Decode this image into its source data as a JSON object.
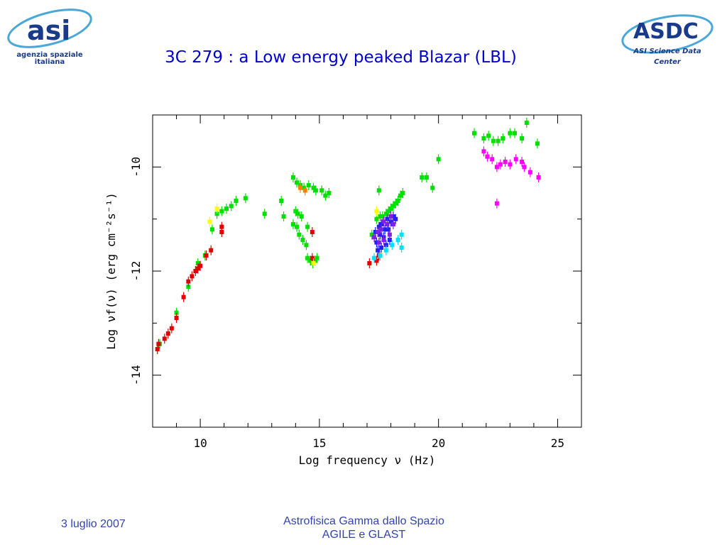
{
  "header": {
    "title": "3C 279 : a Low energy peaked Blazar (LBL)",
    "asi_logo": {
      "line1": "agenzia spaziale",
      "line2": "italiana"
    },
    "asdc_logo": {
      "acronym": "ASDC",
      "line1": "ASI Science Data",
      "line2": "Center"
    }
  },
  "footer": {
    "date": "3 luglio 2007",
    "line1": "Astrofisica Gamma dallo Spazio",
    "line2": "AGILE e GLAST"
  },
  "colors": {
    "title": "#0000cc",
    "footer": "#3344aa",
    "green": "#00e000",
    "red": "#e00000",
    "magenta": "#ff00ff",
    "yellow": "#ffff00",
    "orange": "#ff8000",
    "blue": "#2020ff",
    "purple": "#8020e0",
    "cyan": "#00e0ff"
  },
  "chart_data": {
    "type": "scatter",
    "xlabel": "Log frequency ν (Hz)",
    "ylabel": "Log νf(ν) (erg cm⁻²s⁻¹)",
    "xlim": [
      8,
      26
    ],
    "ylim": [
      -15,
      -9
    ],
    "xticks": [
      10,
      15,
      20,
      25
    ],
    "yticks": [
      -14,
      -12,
      -10
    ],
    "grid": false,
    "series": [
      {
        "color": "green",
        "points": [
          [
            8.3,
            -13.4
          ],
          [
            9,
            -12.8
          ],
          [
            9.5,
            -12.3
          ],
          [
            9.9,
            -11.85
          ],
          [
            10.2,
            -11.7
          ],
          [
            10.5,
            -11.2
          ],
          [
            10.7,
            -10.9
          ],
          [
            10.9,
            -10.85
          ],
          [
            11.1,
            -10.8
          ],
          [
            11.3,
            -10.75
          ],
          [
            11.5,
            -10.65
          ],
          [
            11.9,
            -10.6
          ],
          [
            12.7,
            -10.9
          ],
          [
            13.4,
            -10.65
          ],
          [
            13.5,
            -10.95
          ],
          [
            13.9,
            -10.2
          ],
          [
            14.05,
            -10.3
          ],
          [
            14.2,
            -10.35
          ],
          [
            14.35,
            -10.4
          ],
          [
            14.55,
            -10.35
          ],
          [
            14.75,
            -10.4
          ],
          [
            14.85,
            -10.45
          ],
          [
            14.0,
            -10.85
          ],
          [
            14.1,
            -10.9
          ],
          [
            14.25,
            -10.95
          ],
          [
            13.9,
            -11.1
          ],
          [
            14.05,
            -11.15
          ],
          [
            14.5,
            -11.15
          ],
          [
            14.15,
            -11.3
          ],
          [
            14.3,
            -11.4
          ],
          [
            14.45,
            -11.5
          ],
          [
            14.5,
            -11.75
          ],
          [
            14.62,
            -11.8
          ],
          [
            14.72,
            -11.85
          ],
          [
            14.82,
            -11.8
          ],
          [
            14.9,
            -11.75
          ],
          [
            15.1,
            -10.45
          ],
          [
            15.25,
            -10.55
          ],
          [
            15.4,
            -10.5
          ],
          [
            17.2,
            -11.3
          ],
          [
            17.4,
            -11.0
          ],
          [
            17.55,
            -10.95
          ],
          [
            17.65,
            -10.95
          ],
          [
            17.8,
            -10.9
          ],
          [
            17.9,
            -10.85
          ],
          [
            18.0,
            -10.8
          ],
          [
            18.1,
            -10.75
          ],
          [
            18.2,
            -10.7
          ],
          [
            18.3,
            -10.65
          ],
          [
            18.4,
            -10.55
          ],
          [
            18.5,
            -10.5
          ],
          [
            17.5,
            -10.45
          ],
          [
            19.3,
            -10.2
          ],
          [
            19.5,
            -10.2
          ],
          [
            19.75,
            -10.4
          ],
          [
            20.0,
            -9.85
          ],
          [
            21.5,
            -9.35
          ],
          [
            21.9,
            -9.45
          ],
          [
            22.1,
            -9.4
          ],
          [
            22.3,
            -9.5
          ],
          [
            22.5,
            -9.5
          ],
          [
            22.7,
            -9.45
          ],
          [
            23.0,
            -9.35
          ],
          [
            23.2,
            -9.35
          ],
          [
            23.5,
            -9.45
          ],
          [
            23.7,
            -9.15
          ],
          [
            24.15,
            -9.55
          ]
        ]
      },
      {
        "color": "red",
        "points": [
          [
            8.2,
            -13.5
          ],
          [
            8.25,
            -13.4
          ],
          [
            8.5,
            -13.3
          ],
          [
            8.65,
            -13.2
          ],
          [
            8.8,
            -13.1
          ],
          [
            9.0,
            -12.9
          ],
          [
            9.3,
            -12.5
          ],
          [
            9.5,
            -12.2
          ],
          [
            9.65,
            -12.1
          ],
          [
            9.8,
            -12.0
          ],
          [
            9.9,
            -11.95
          ],
          [
            10.0,
            -11.9
          ],
          [
            10.25,
            -11.7
          ],
          [
            10.45,
            -11.6
          ],
          [
            10.9,
            -11.15
          ],
          [
            10.9,
            -11.25
          ],
          [
            14.7,
            -11.25
          ],
          [
            14.7,
            -11.75
          ],
          [
            17.1,
            -11.85
          ],
          [
            17.4,
            -11.8
          ],
          [
            17.5,
            -11.7
          ]
        ]
      },
      {
        "color": "magenta",
        "points": [
          [
            21.9,
            -9.7
          ],
          [
            22.05,
            -9.8
          ],
          [
            22.25,
            -9.85
          ],
          [
            22.45,
            -10.0
          ],
          [
            22.6,
            -9.95
          ],
          [
            22.8,
            -9.9
          ],
          [
            23.0,
            -9.95
          ],
          [
            23.25,
            -9.85
          ],
          [
            23.5,
            -9.9
          ],
          [
            23.6,
            -10.0
          ],
          [
            23.85,
            -10.1
          ],
          [
            24.2,
            -10.2
          ],
          [
            22.45,
            -10.7
          ]
        ]
      },
      {
        "color": "yellow",
        "points": [
          [
            10.4,
            -11.05
          ],
          [
            10.7,
            -10.8
          ],
          [
            14.75,
            -11.85
          ],
          [
            17.4,
            -10.85
          ]
        ]
      },
      {
        "color": "orange",
        "points": [
          [
            14.2,
            -10.4
          ],
          [
            14.4,
            -10.45
          ]
        ]
      },
      {
        "color": "blue",
        "points": [
          [
            17.35,
            -11.25
          ],
          [
            17.5,
            -11.15
          ],
          [
            17.6,
            -11.1
          ],
          [
            17.75,
            -11.2
          ],
          [
            17.85,
            -11.0
          ],
          [
            18.0,
            -11.05
          ],
          [
            18.1,
            -10.95
          ],
          [
            18.2,
            -11.0
          ],
          [
            17.4,
            -11.45
          ],
          [
            17.55,
            -11.3
          ],
          [
            17.7,
            -11.35
          ],
          [
            17.9,
            -11.2
          ],
          [
            17.45,
            -11.6
          ],
          [
            17.6,
            -11.55
          ],
          [
            17.8,
            -11.5
          ],
          [
            17.95,
            -11.4
          ]
        ]
      },
      {
        "color": "purple",
        "points": [
          [
            17.3,
            -11.35
          ],
          [
            17.45,
            -11.25
          ],
          [
            17.6,
            -11.2
          ],
          [
            17.7,
            -11.05
          ],
          [
            17.85,
            -11.1
          ],
          [
            18.0,
            -10.95
          ],
          [
            18.1,
            -11.1
          ],
          [
            17.5,
            -11.45
          ],
          [
            17.7,
            -11.4
          ],
          [
            17.95,
            -11.3
          ]
        ]
      },
      {
        "color": "cyan",
        "points": [
          [
            17.3,
            -11.75
          ],
          [
            17.55,
            -11.7
          ],
          [
            17.8,
            -11.6
          ],
          [
            18.05,
            -11.5
          ],
          [
            18.3,
            -11.4
          ],
          [
            18.45,
            -11.55
          ],
          [
            18.45,
            -11.3
          ]
        ]
      }
    ]
  }
}
